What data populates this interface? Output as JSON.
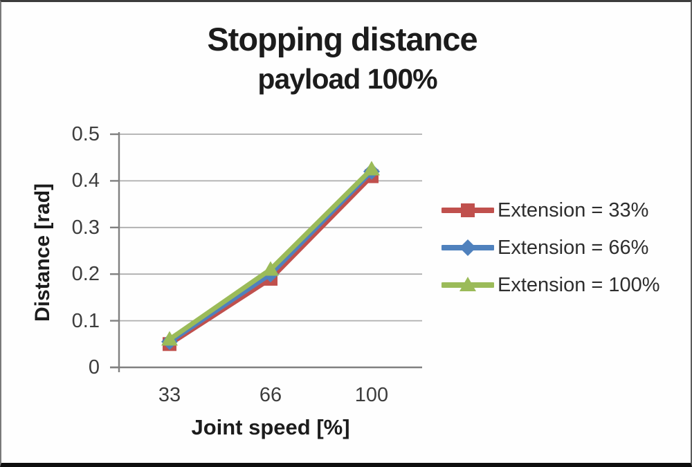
{
  "title": "Stopping distance",
  "subtitle": "payload 100%",
  "chart_data": {
    "type": "line",
    "title": "Stopping distance",
    "subtitle": "payload 100%",
    "xlabel": "Joint speed [%]",
    "ylabel": "Distance [rad]",
    "categories": [
      33,
      66,
      100
    ],
    "x_tick_labels": [
      "33",
      "66",
      "100"
    ],
    "y_ticks": [
      0,
      0.1,
      0.2,
      0.3,
      0.4,
      0.5
    ],
    "y_tick_labels": [
      "0",
      "0.1",
      "0.2",
      "0.3",
      "0.4",
      "0.5"
    ],
    "ylim": [
      0,
      0.5
    ],
    "grid": "horizontal-only",
    "legend_position": "right",
    "series": [
      {
        "name": "Extension = 33%",
        "marker": "square",
        "color": "#C0504D",
        "values": [
          0.05,
          0.19,
          0.41
        ]
      },
      {
        "name": "Extension = 66%",
        "marker": "diamond",
        "color": "#4F81BD",
        "values": [
          0.055,
          0.2,
          0.42
        ]
      },
      {
        "name": "Extension = 100%",
        "marker": "triangle",
        "color": "#9BBB59",
        "values": [
          0.06,
          0.21,
          0.425
        ]
      }
    ]
  },
  "colors": {
    "gridline": "#ADADAD",
    "axis": "#808080",
    "tick_text": "#3D3D3D",
    "title_text": "#1C1C1C",
    "series_red": "#C0504D",
    "series_blue": "#4F81BD",
    "series_green": "#9BBB59"
  }
}
